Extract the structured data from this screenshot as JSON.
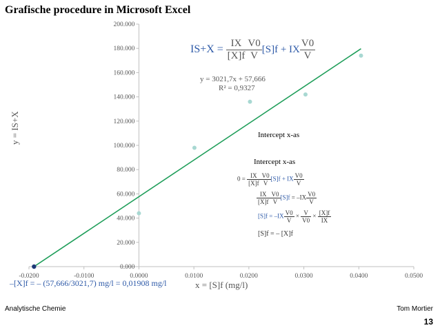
{
  "slide": {
    "title": "Grafische procedure in Microsoft Excel",
    "footer_left": "Analytische Chemie",
    "footer_right": "Tom Mortier",
    "page_number": "13"
  },
  "annotations": {
    "trend_eq": "y = 3021,7x + 57,666",
    "r2": "R² = 0,9327",
    "intercept_label_1": "Intercept x-as",
    "intercept_label_2": "Intercept x-as",
    "xint_text": "–[X]f = – (57,666/3021,7) mg/l = 0,01908 mg/l"
  },
  "formula_text": {
    "lhs": "IS+X =",
    "ix": "IX",
    "xf": "[X]f",
    "v0": "V0",
    "v": "V",
    "sf_plus": "[S]f + IX",
    "zero": "0 =",
    "sf": "[S]f",
    "eq_minus_ix": "= –IX",
    "sf_eq_minus_ix": "[S]f = –IX",
    "times": "×",
    "sf_eq_minus_xf": "[S]f = – [X]f"
  },
  "chart_data": {
    "type": "scatter",
    "title": "",
    "xlabel": "x = [S]f (mg/l)",
    "ylabel": "y = IS+X",
    "xlim": [
      -0.02,
      0.05
    ],
    "ylim": [
      0,
      200
    ],
    "x_ticks": [
      -0.02,
      -0.01,
      0.0,
      0.01,
      0.02,
      0.03,
      0.04,
      0.05
    ],
    "x_tick_labels": [
      "-0.0200",
      "-0.0100",
      "0.0000",
      "0.0100",
      "0.0200",
      "0.0300",
      "0.0400",
      "0.0500"
    ],
    "y_ticks": [
      0,
      20,
      40,
      60,
      80,
      100,
      120,
      140,
      160,
      180,
      200
    ],
    "y_tick_labels": [
      "0.000",
      "20.000",
      "40.000",
      "60.000",
      "80.000",
      "100.000",
      "120.000",
      "140.000",
      "160.000",
      "180.000",
      "200.000"
    ],
    "series": [
      {
        "x": [
          0.0,
          0.0101,
          0.0202,
          0.0303,
          0.0404
        ],
        "y": [
          44,
          98,
          136,
          142,
          174
        ],
        "color": "#a8d8d2"
      }
    ],
    "trendline": {
      "slope": 3021.7,
      "intercept": 57.666,
      "x_range": [
        -0.01908,
        0.0404
      ],
      "color": "#1f9e5a"
    },
    "x_intercept_point": {
      "x": -0.01908,
      "y": 0,
      "color": "#1f3a78"
    },
    "grid": false,
    "legend": "none"
  }
}
